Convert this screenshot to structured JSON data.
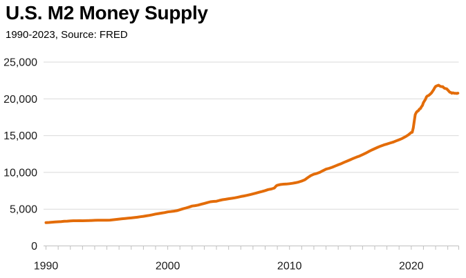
{
  "header": {
    "title": "U.S. M2 Money Supply",
    "subtitle": "1990-2023, Source: FRED"
  },
  "colors": {
    "background": "#FFFFFF",
    "line": "#E36C09",
    "gridline": "#D9D9D9",
    "axis": "#BFBFBF",
    "tick_label": "#1A1A1A",
    "title_text": "#000000"
  },
  "chart_data": {
    "type": "line",
    "title": "U.S. M2 Money Supply",
    "subtitle": "1990-2023, Source: FRED",
    "xlabel": "",
    "ylabel": "",
    "x_range": [
      1989.8,
      2023.9
    ],
    "ylim": [
      0,
      25000
    ],
    "grid": "horizontal-only",
    "legend": "none",
    "y_ticks": [
      {
        "value": 0,
        "label": "0"
      },
      {
        "value": 5000,
        "label": "5,000"
      },
      {
        "value": 10000,
        "label": "10,000"
      },
      {
        "value": 15000,
        "label": "15,000"
      },
      {
        "value": 20000,
        "label": "20,000"
      },
      {
        "value": 25000,
        "label": "25,000"
      }
    ],
    "x_ticks": {
      "minor_interval_years": 1,
      "labeled": [
        {
          "value": 1990,
          "label": "1990"
        },
        {
          "value": 2000,
          "label": "2000"
        },
        {
          "value": 2010,
          "label": "2010"
        },
        {
          "value": 2020,
          "label": "2020"
        }
      ]
    },
    "series": [
      {
        "color": "#E36C09",
        "points": [
          [
            1990.0,
            3166
          ],
          [
            1990.25,
            3187
          ],
          [
            1990.5,
            3224
          ],
          [
            1990.75,
            3254
          ],
          [
            1991.0,
            3283
          ],
          [
            1991.25,
            3316
          ],
          [
            1991.5,
            3345
          ],
          [
            1991.75,
            3372
          ],
          [
            1992.0,
            3402
          ],
          [
            1992.25,
            3424
          ],
          [
            1992.5,
            3424
          ],
          [
            1992.75,
            3429
          ],
          [
            1993.0,
            3424
          ],
          [
            1993.25,
            3430
          ],
          [
            1993.5,
            3443
          ],
          [
            1993.75,
            3459
          ],
          [
            1994.0,
            3476
          ],
          [
            1994.25,
            3489
          ],
          [
            1994.5,
            3491
          ],
          [
            1994.75,
            3495
          ],
          [
            1995.0,
            3493
          ],
          [
            1995.25,
            3512
          ],
          [
            1995.5,
            3553
          ],
          [
            1995.75,
            3599
          ],
          [
            1996.0,
            3651
          ],
          [
            1996.25,
            3698
          ],
          [
            1996.5,
            3733
          ],
          [
            1996.75,
            3770
          ],
          [
            1997.0,
            3812
          ],
          [
            1997.25,
            3853
          ],
          [
            1997.5,
            3907
          ],
          [
            1997.75,
            3964
          ],
          [
            1998.0,
            4029
          ],
          [
            1998.25,
            4094
          ],
          [
            1998.5,
            4154
          ],
          [
            1998.75,
            4236
          ],
          [
            1999.0,
            4334
          ],
          [
            1999.25,
            4404
          ],
          [
            1999.5,
            4464
          ],
          [
            1999.75,
            4529
          ],
          [
            2000.0,
            4629
          ],
          [
            2000.25,
            4675
          ],
          [
            2000.5,
            4725
          ],
          [
            2000.75,
            4795
          ],
          [
            2001.0,
            4917
          ],
          [
            2001.25,
            5046
          ],
          [
            2001.5,
            5164
          ],
          [
            2001.75,
            5280
          ],
          [
            2002.0,
            5418
          ],
          [
            2002.25,
            5475
          ],
          [
            2002.5,
            5557
          ],
          [
            2002.75,
            5668
          ],
          [
            2003.0,
            5781
          ],
          [
            2003.25,
            5891
          ],
          [
            2003.5,
            6000
          ],
          [
            2003.75,
            6049
          ],
          [
            2004.0,
            6079
          ],
          [
            2004.25,
            6188
          ],
          [
            2004.5,
            6281
          ],
          [
            2004.75,
            6346
          ],
          [
            2005.0,
            6417
          ],
          [
            2005.25,
            6473
          ],
          [
            2005.5,
            6540
          ],
          [
            2005.75,
            6626
          ],
          [
            2006.0,
            6713
          ],
          [
            2006.25,
            6792
          ],
          [
            2006.5,
            6873
          ],
          [
            2006.75,
            6967
          ],
          [
            2007.0,
            7070
          ],
          [
            2007.25,
            7183
          ],
          [
            2007.5,
            7295
          ],
          [
            2007.75,
            7405
          ],
          [
            2008.0,
            7524
          ],
          [
            2008.25,
            7661
          ],
          [
            2008.5,
            7740
          ],
          [
            2008.75,
            7870
          ],
          [
            2008.92,
            8180
          ],
          [
            2009.0,
            8250
          ],
          [
            2009.25,
            8350
          ],
          [
            2009.5,
            8400
          ],
          [
            2009.75,
            8410
          ],
          [
            2010.0,
            8460
          ],
          [
            2010.25,
            8520
          ],
          [
            2010.5,
            8590
          ],
          [
            2010.75,
            8690
          ],
          [
            2011.0,
            8820
          ],
          [
            2011.25,
            8990
          ],
          [
            2011.5,
            9290
          ],
          [
            2011.75,
            9560
          ],
          [
            2012.0,
            9750
          ],
          [
            2012.25,
            9860
          ],
          [
            2012.5,
            10010
          ],
          [
            2012.75,
            10230
          ],
          [
            2013.0,
            10440
          ],
          [
            2013.25,
            10550
          ],
          [
            2013.5,
            10690
          ],
          [
            2013.75,
            10860
          ],
          [
            2014.0,
            11030
          ],
          [
            2014.25,
            11190
          ],
          [
            2014.5,
            11380
          ],
          [
            2014.75,
            11550
          ],
          [
            2015.0,
            11730
          ],
          [
            2015.25,
            11900
          ],
          [
            2015.5,
            12070
          ],
          [
            2015.75,
            12220
          ],
          [
            2016.0,
            12410
          ],
          [
            2016.25,
            12610
          ],
          [
            2016.5,
            12830
          ],
          [
            2016.75,
            13040
          ],
          [
            2017.0,
            13230
          ],
          [
            2017.25,
            13410
          ],
          [
            2017.5,
            13580
          ],
          [
            2017.75,
            13730
          ],
          [
            2018.0,
            13860
          ],
          [
            2018.25,
            13990
          ],
          [
            2018.5,
            14110
          ],
          [
            2018.75,
            14280
          ],
          [
            2019.0,
            14440
          ],
          [
            2019.25,
            14610
          ],
          [
            2019.5,
            14830
          ],
          [
            2019.75,
            15080
          ],
          [
            2020.0,
            15420
          ],
          [
            2020.08,
            15450
          ],
          [
            2020.17,
            16080
          ],
          [
            2020.25,
            17000
          ],
          [
            2020.33,
            17860
          ],
          [
            2020.42,
            18160
          ],
          [
            2020.5,
            18310
          ],
          [
            2020.58,
            18380
          ],
          [
            2020.67,
            18600
          ],
          [
            2020.75,
            18670
          ],
          [
            2020.83,
            18900
          ],
          [
            2020.92,
            19110
          ],
          [
            2021.0,
            19480
          ],
          [
            2021.08,
            19700
          ],
          [
            2021.17,
            19940
          ],
          [
            2021.25,
            20260
          ],
          [
            2021.33,
            20390
          ],
          [
            2021.42,
            20450
          ],
          [
            2021.5,
            20550
          ],
          [
            2021.58,
            20680
          ],
          [
            2021.67,
            20820
          ],
          [
            2021.75,
            21020
          ],
          [
            2021.83,
            21210
          ],
          [
            2021.92,
            21490
          ],
          [
            2022.0,
            21680
          ],
          [
            2022.08,
            21750
          ],
          [
            2022.17,
            21810
          ],
          [
            2022.25,
            21860
          ],
          [
            2022.33,
            21750
          ],
          [
            2022.42,
            21690
          ],
          [
            2022.5,
            21660
          ],
          [
            2022.58,
            21660
          ],
          [
            2022.67,
            21520
          ],
          [
            2022.75,
            21430
          ],
          [
            2022.83,
            21400
          ],
          [
            2022.92,
            21360
          ],
          [
            2023.0,
            21200
          ],
          [
            2023.08,
            21060
          ],
          [
            2023.17,
            20900
          ],
          [
            2023.25,
            20860
          ],
          [
            2023.33,
            20760
          ],
          [
            2023.42,
            20830
          ],
          [
            2023.5,
            20780
          ],
          [
            2023.58,
            20750
          ],
          [
            2023.67,
            20760
          ],
          [
            2023.75,
            20730
          ],
          [
            2023.83,
            20780
          ]
        ]
      }
    ]
  }
}
